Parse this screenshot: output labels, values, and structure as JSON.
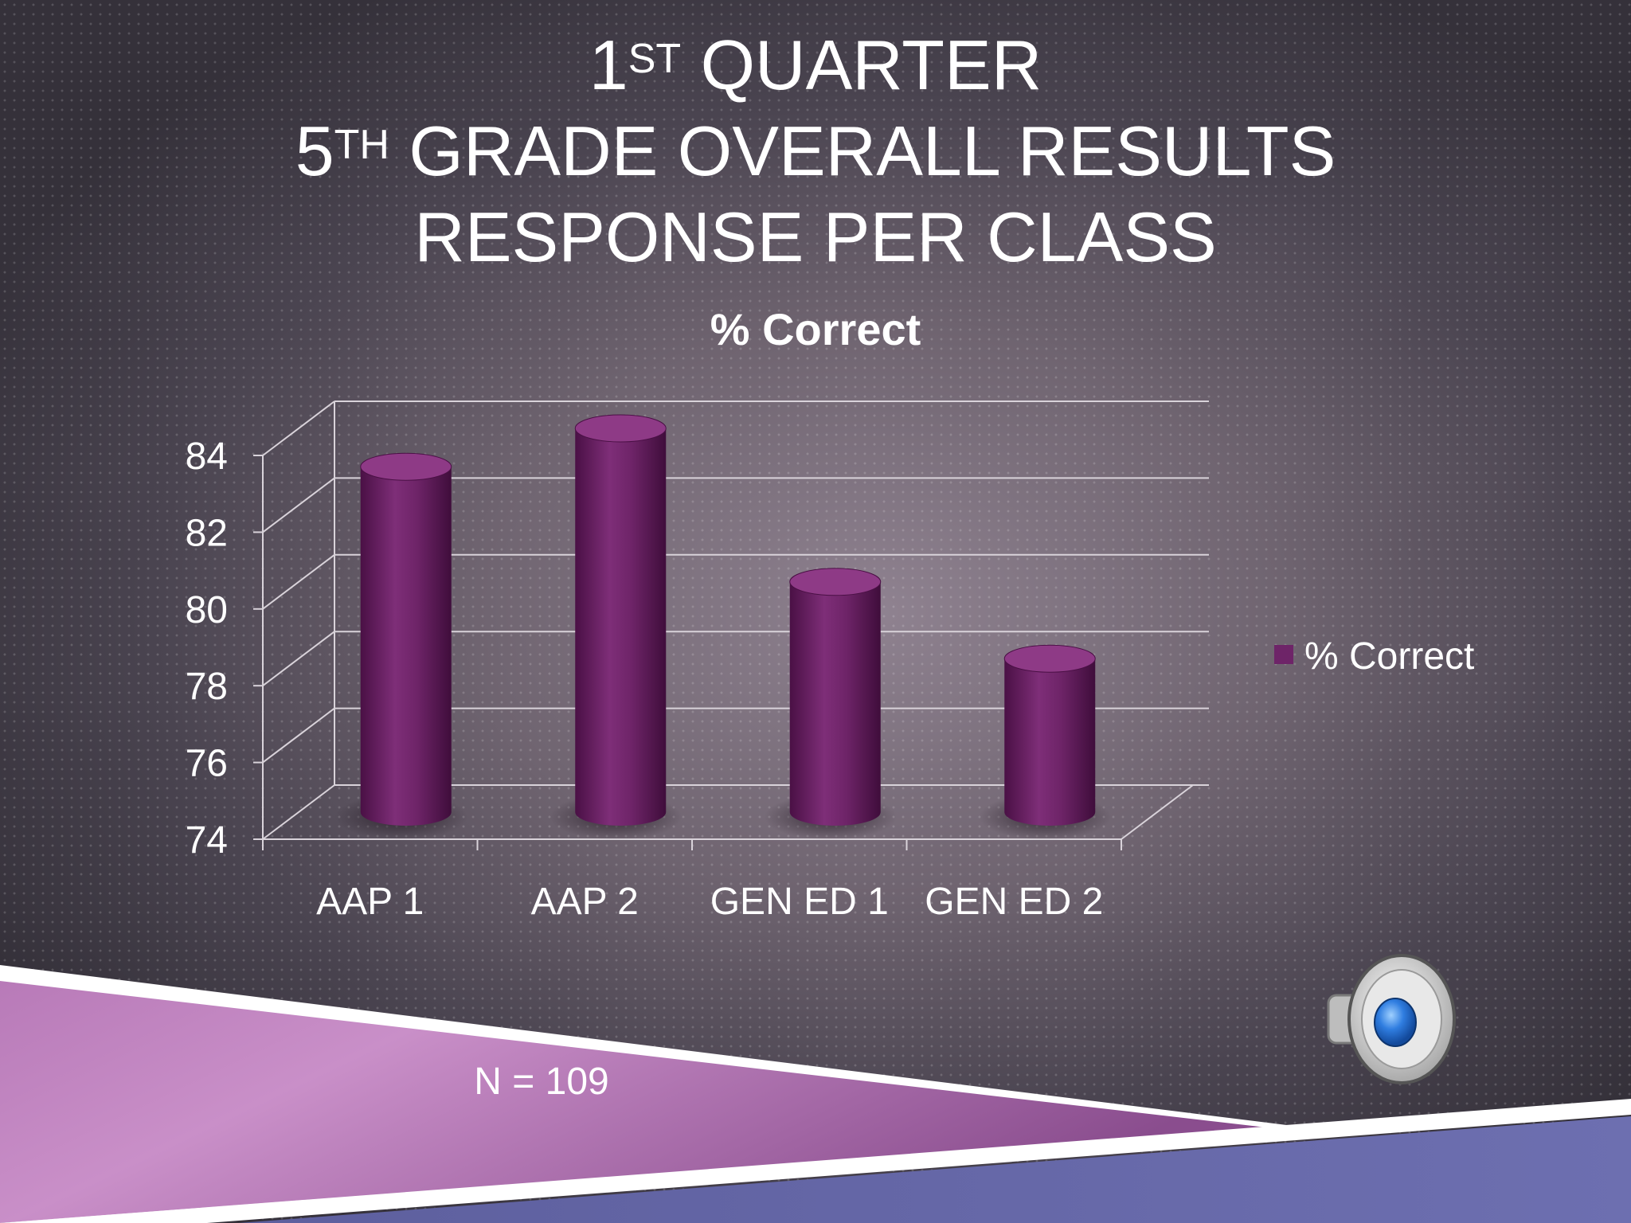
{
  "slide": {
    "title_line1": {
      "pre": "1",
      "sup": "st",
      "post": " Quarter"
    },
    "title_line2": {
      "pre": "5",
      "sup": "th",
      "post": " Grade Overall Results"
    },
    "title_line3": "Response per Class",
    "footnote": "N = 109",
    "speaker_icon": "speaker-icon"
  },
  "colors": {
    "bar": "#6e2468",
    "bar_light": "#8e3a86",
    "bar_dark": "#4a1045",
    "text": "#ffffff",
    "grid": "#d9d3da"
  },
  "chart_data": {
    "type": "bar",
    "title": "% Correct",
    "categories": [
      "AAP 1",
      "AAP 2",
      "GEN ED 1",
      "GEN ED 2"
    ],
    "series": [
      {
        "name": "% Correct",
        "values": [
          83,
          84,
          80,
          78
        ]
      }
    ],
    "ylim": [
      74,
      84
    ],
    "yticks": [
      "74",
      "76",
      "78",
      "80",
      "82",
      "84"
    ],
    "grid": true,
    "legend": "right",
    "style": "3d-cylinder"
  }
}
